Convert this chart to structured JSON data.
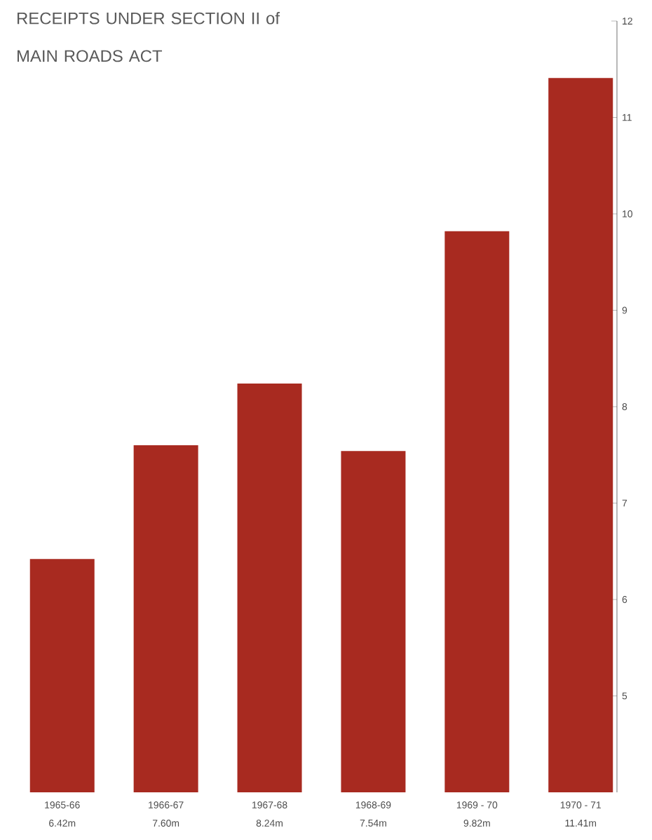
{
  "chart_data": {
    "type": "bar",
    "title": "RECEIPTS UNDER SECTION II of MAIN ROADS ACT",
    "categories": [
      "1965-66",
      "1966-67",
      "1967-68",
      "1968-69",
      "1969 - 70",
      "1970 - 71"
    ],
    "values": [
      6.42,
      7.6,
      8.24,
      7.54,
      9.82,
      11.41
    ],
    "value_labels": [
      "6.42m",
      "7.60m",
      "8.24m",
      "7.54m",
      "9.82m",
      "11.41m"
    ],
    "color": "#a82a20",
    "ylim": [
      4,
      12
    ],
    "yticks": [
      5,
      6,
      7,
      8,
      9,
      10,
      11,
      12
    ]
  }
}
